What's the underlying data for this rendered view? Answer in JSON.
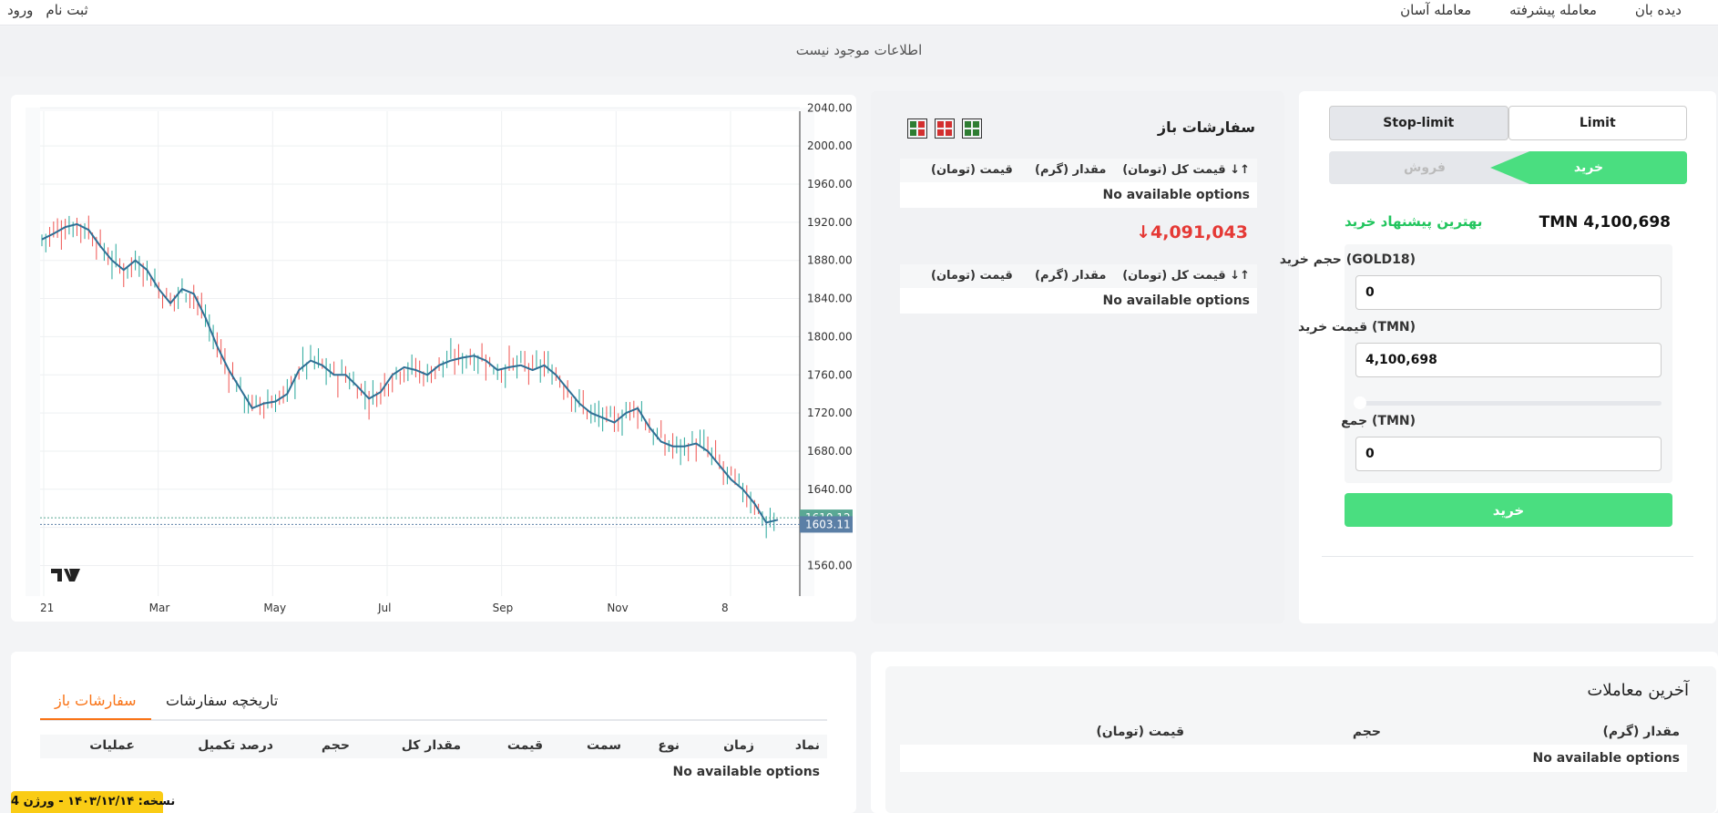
{
  "nav": {
    "right": [
      "دیده بان",
      "معامله پیشرفته",
      "معامله آسان"
    ],
    "login": "ورود",
    "register": "ثبت نام"
  },
  "info_message": "اطلاعات موجود نیست",
  "chart_data": {
    "type": "candlestick",
    "x_ticks": [
      "21",
      "Mar",
      "May",
      "Jul",
      "Sep",
      "Nov",
      "8"
    ],
    "y_ticks": [
      "2040.00",
      "2000.00",
      "1960.00",
      "1920.00",
      "1880.00",
      "1840.00",
      "1800.00",
      "1760.00",
      "1720.00",
      "1680.00",
      "1640.00",
      "1600.00",
      "1560.00"
    ],
    "ylim": [
      1528,
      2046
    ],
    "price_labels": [
      "1610.12",
      "1603.11"
    ],
    "price_values": [
      1610.12,
      1603.11
    ],
    "price_label_colors": [
      "#5aa894",
      "#5b7fa6"
    ],
    "up_color": "#26a69a",
    "down_color": "#ef5350",
    "ma_color": "#2f6f95",
    "ma_series": [
      1902,
      1908,
      1915,
      1918,
      1912,
      1895,
      1880,
      1870,
      1880,
      1870,
      1850,
      1835,
      1850,
      1845,
      1820,
      1790,
      1765,
      1745,
      1725,
      1730,
      1732,
      1740,
      1765,
      1775,
      1770,
      1760,
      1760,
      1748,
      1735,
      1742,
      1760,
      1768,
      1765,
      1760,
      1770,
      1775,
      1778,
      1780,
      1775,
      1765,
      1768,
      1770,
      1765,
      1770,
      1760,
      1745,
      1730,
      1720,
      1715,
      1710,
      1720,
      1725,
      1705,
      1690,
      1685,
      1685,
      1688,
      1680,
      1665,
      1650,
      1640,
      1625,
      1605,
      1608
    ],
    "grid": true
  },
  "order_book": {
    "title": "سفارشات باز",
    "col_total": "قیمت کل (تومان)",
    "col_amount": "مقدار (گرم)",
    "col_price": "قیمت (تومان)",
    "empty": "No available options",
    "last_price": "4,091,043",
    "icon_colors": [
      "#d32f2f",
      "#2e7d32"
    ]
  },
  "form": {
    "tab_limit": "Limit",
    "tab_stoplimit": "Stop-limit",
    "side_buy": "خرید",
    "side_sell": "فروش",
    "best_price": "TMN 4,100,698",
    "best_label": "بهترین پیشنهاد خرید",
    "volume_label": "حجم خرید (GOLD18)",
    "volume_value": "0",
    "price_label": "قیمت خرید (TMN)",
    "price_value": "4,100,698",
    "total_label": "جمع (TMN)",
    "total_value": "0",
    "slider_value": 0,
    "submit": "خرید"
  },
  "orders": {
    "tab_open": "سفارشات باز",
    "tab_history": "تاریخچه سفارشات",
    "cols": [
      "نماد",
      "زمان",
      "نوع",
      "سمت",
      "قیمت",
      "مقدار کل",
      "حجم",
      "درصد تکمیل",
      "عملیات"
    ],
    "empty": "No available options"
  },
  "trades": {
    "title": "آخرین معاملات",
    "col_amount": "مقدار (گرم)",
    "col_volume": "حجم",
    "col_price": "قیمت (تومان)",
    "empty": "No available options"
  },
  "version": "نسخه: ۱۴۰۳/۱۲/۱۴ - ورژن 4"
}
